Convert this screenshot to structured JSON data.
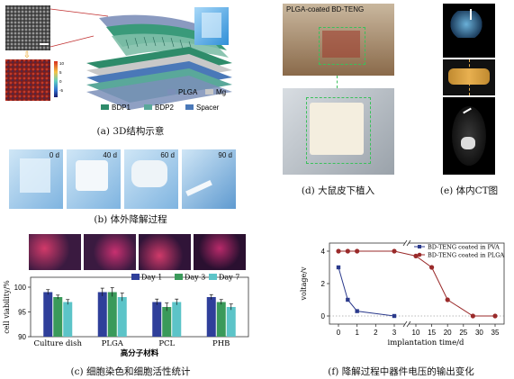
{
  "panel_a": {
    "caption": "(a) 3D结构示意",
    "legend": [
      "PLGA",
      "Mg",
      "BDP1",
      "BDP2",
      "Spacer"
    ],
    "colors": {
      "PLGA": "#7b8fb8",
      "Mg": "#c8c8c8",
      "BDP1": "#2e8b6a",
      "BDP2": "#5aa89a",
      "Spacer": "#4a78b8"
    },
    "colorbar": {
      "ticks": [
        "10",
        "5",
        "0",
        "-5"
      ]
    }
  },
  "panel_b": {
    "caption": "(b) 体外降解过程",
    "days": [
      "0 d",
      "40 d",
      "60 d",
      "90 d"
    ]
  },
  "panel_c": {
    "caption": "(c) 细胞染色和细胞活性统计",
    "chart_data": {
      "type": "bar",
      "categories": [
        "Culture dish",
        "PLGA",
        "PCL",
        "PHB"
      ],
      "series": [
        {
          "name": "Day 1",
          "values": [
            99,
            99,
            97,
            98
          ],
          "errors": [
            0.5,
            0.8,
            0.6,
            0.5
          ],
          "color": "#2f3f9a"
        },
        {
          "name": "Day 3",
          "values": [
            98,
            99,
            96,
            97
          ],
          "errors": [
            0.4,
            0.9,
            0.8,
            0.5
          ],
          "color": "#3a9a5a"
        },
        {
          "name": "Day 7",
          "values": [
            97,
            98,
            97,
            96
          ],
          "errors": [
            0.5,
            0.8,
            0.6,
            0.6
          ],
          "color": "#5cc4c8"
        }
      ],
      "xlabel": "高分子材料",
      "ylabel": "cell viability/%",
      "ylim": [
        90,
        102
      ],
      "yticks": [
        90,
        95,
        100
      ]
    }
  },
  "panel_d": {
    "caption": "(d) 大鼠皮下植入",
    "photo_label": "PLGA-coated BD-TENG"
  },
  "panel_e": {
    "caption": "(e) 体内CT图"
  },
  "panel_f": {
    "caption": "(f) 降解过程中器件电压的输出变化",
    "chart_data": {
      "type": "line",
      "xlabel": "implantation time/d",
      "ylabel": "voltage/v",
      "xticks": [
        "0",
        "1",
        "2",
        "3",
        "10",
        "15",
        "20",
        "25",
        "30",
        "35"
      ],
      "yticks": [
        0,
        2,
        4
      ],
      "series": [
        {
          "name": "BD-TENG coated in PVA",
          "color": "#2b3a8c",
          "x": [
            0,
            0.5,
            1,
            3
          ],
          "y": [
            3.0,
            1.0,
            0.3,
            0.0
          ]
        },
        {
          "name": "BD-TENG coated in PLGA",
          "color": "#9a2a2a",
          "x": [
            0,
            0.5,
            1,
            3,
            10,
            15,
            20,
            28,
            35
          ],
          "y": [
            4.0,
            4.0,
            4.0,
            4.0,
            3.7,
            3.0,
            1.0,
            0.0,
            0.0
          ]
        }
      ]
    }
  }
}
